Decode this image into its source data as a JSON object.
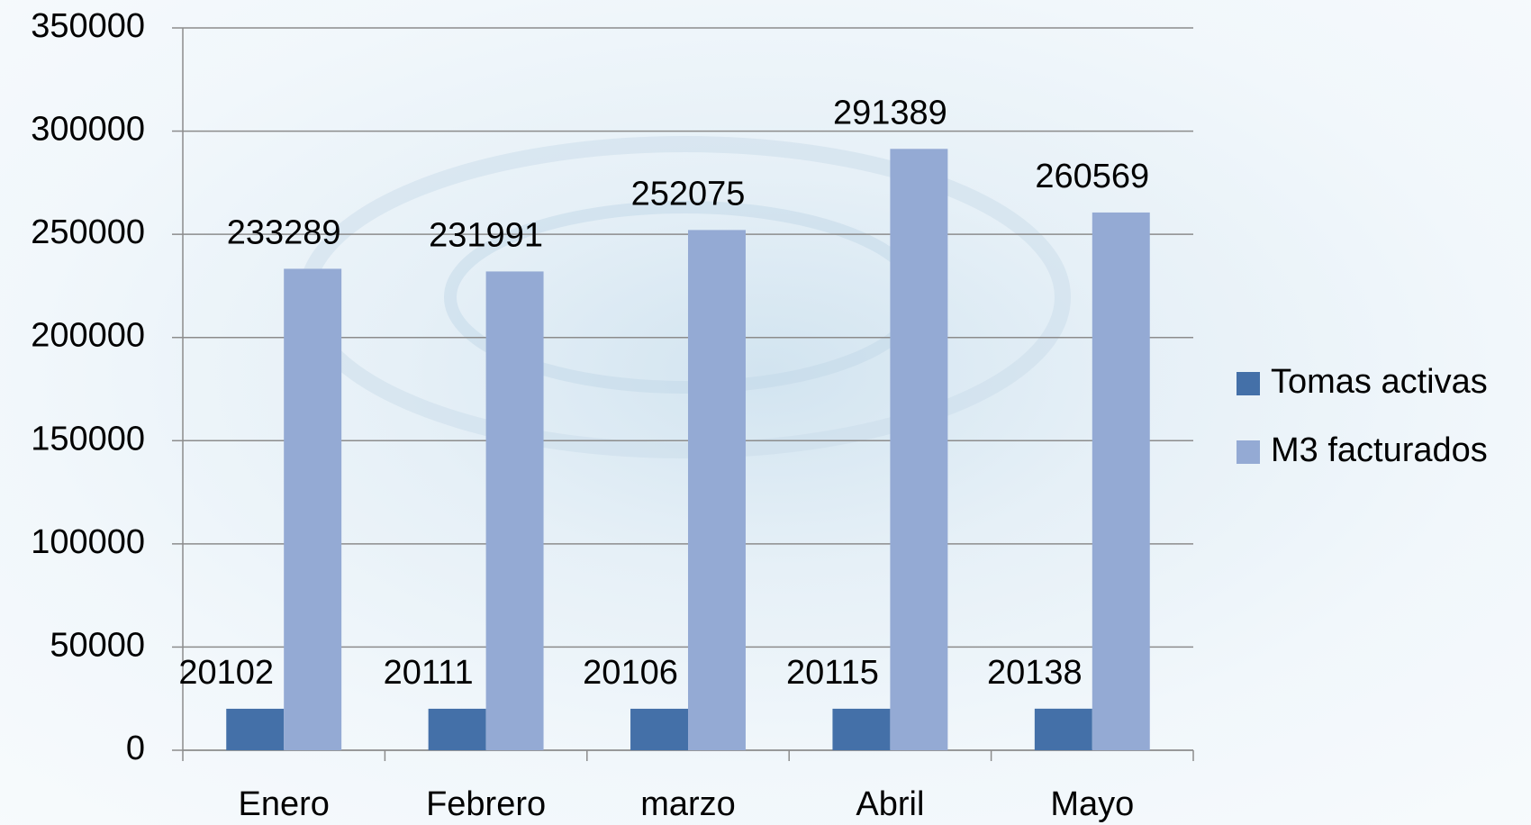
{
  "chart_data": {
    "type": "bar",
    "categories": [
      "Enero",
      "Febrero",
      "marzo",
      "Abril",
      "Mayo"
    ],
    "series": [
      {
        "name": "Tomas activas",
        "color": "#4470a8",
        "values": [
          20102,
          20111,
          20106,
          20115,
          20138
        ]
      },
      {
        "name": "M3 facturados",
        "color": "#94aad4",
        "values": [
          233289,
          231991,
          252075,
          291389,
          260569
        ]
      }
    ],
    "ylim": [
      0,
      350000
    ],
    "yticks": [
      0,
      50000,
      100000,
      150000,
      200000,
      250000,
      300000,
      350000
    ],
    "grid": true,
    "legend": "right"
  }
}
